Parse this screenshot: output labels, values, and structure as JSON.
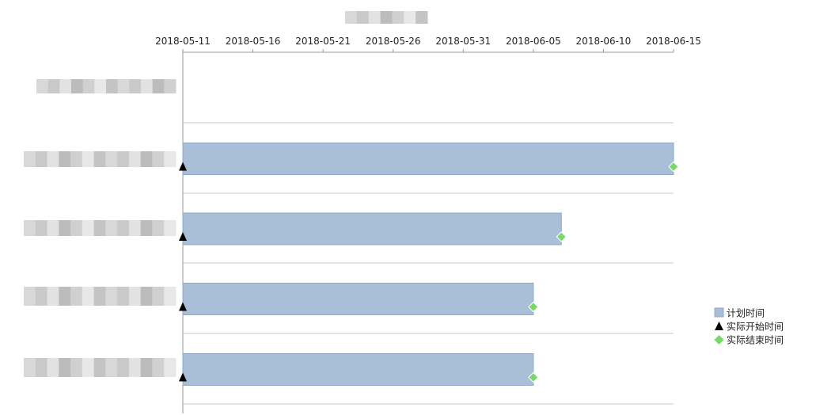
{
  "chart_data": {
    "type": "gantt",
    "title": "",
    "x_axis": {
      "ticks": [
        "2018-05-11",
        "2018-05-16",
        "2018-05-21",
        "2018-05-26",
        "2018-05-31",
        "2018-06-05",
        "2018-06-10",
        "2018-06-15"
      ],
      "range": [
        "2018-05-11",
        "2018-06-15"
      ],
      "position": "top"
    },
    "tasks": [
      {
        "label": "",
        "plan_start": null,
        "plan_end": null,
        "actual_start": null,
        "actual_end": null
      },
      {
        "label": "",
        "plan_start": "2018-05-11",
        "plan_end": "2018-06-15",
        "actual_start": "2018-05-11",
        "actual_end": "2018-06-15"
      },
      {
        "label": "",
        "plan_start": "2018-05-11",
        "plan_end": "2018-06-07",
        "actual_start": "2018-05-11",
        "actual_end": "2018-06-07"
      },
      {
        "label": "",
        "plan_start": "2018-05-11",
        "plan_end": "2018-06-05",
        "actual_start": "2018-05-11",
        "actual_end": "2018-06-05"
      },
      {
        "label": "",
        "plan_start": "2018-05-11",
        "plan_end": "2018-06-05",
        "actual_start": "2018-05-11",
        "actual_end": "2018-06-05"
      }
    ],
    "legend": {
      "placement": "right",
      "items": [
        {
          "label": "计划时间",
          "marker": "square",
          "color": "#a9bfd7"
        },
        {
          "label": "实际开始时间",
          "marker": "triangle",
          "color": "#000000"
        },
        {
          "label": "实际结束时间",
          "marker": "diamond",
          "color": "#78d96a"
        }
      ]
    },
    "grid": {
      "horizontal": true,
      "vertical": false
    },
    "colors": {
      "bar": "#a9bfd7",
      "bar_border": "#8fa8c4",
      "grid": "#c8c8c8",
      "axis": "#999999"
    }
  }
}
